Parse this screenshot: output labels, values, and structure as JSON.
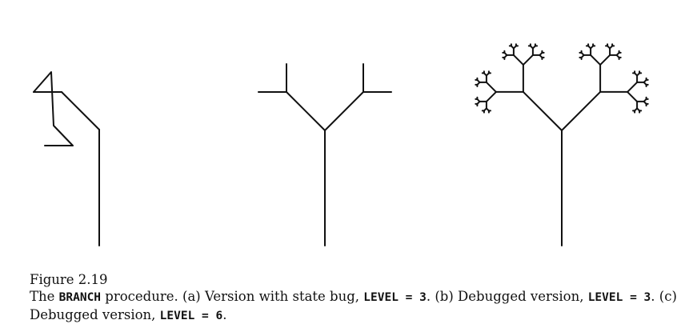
{
  "figure": {
    "label": "Figure 2.19",
    "caption_parts": [
      "The ",
      "BRANCH",
      " procedure. (a) Version with state bug, ",
      "LEVEL = 3",
      ". (b) Debugged version, ",
      "LEVEL = 3",
      ". (c) Debugged version, ",
      "LEVEL = 6",
      "."
    ]
  }
}
